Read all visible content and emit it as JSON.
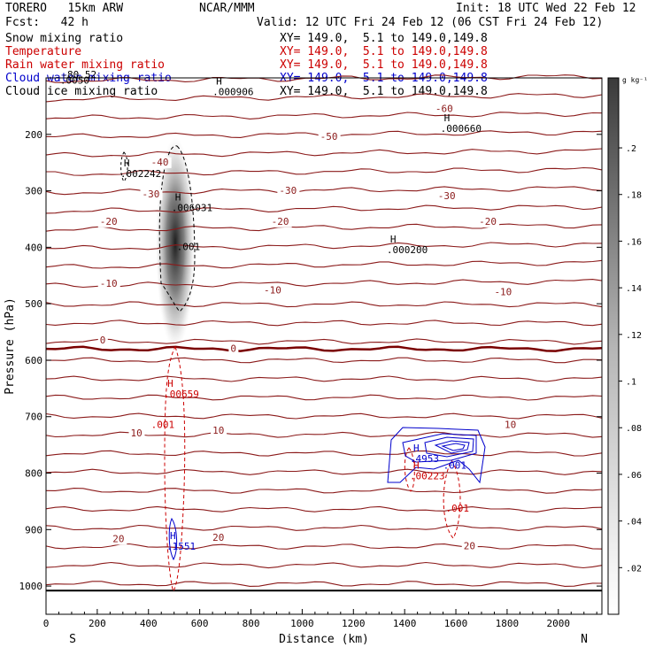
{
  "header": {
    "model": "TORERO   15km ARW",
    "center": "NCAR/MMM",
    "init": "Init: 18 UTC Wed 22 Feb 12",
    "fcst": "Fcst:   42 h",
    "valid": "Valid: 12 UTC Fri 24 Feb 12 (06 CST Fri 24 Feb 12)"
  },
  "legend": [
    {
      "name": "Snow mixing ratio",
      "xy": "XY= 149.0,  5.1 to 149.0,149.8",
      "color": "#000000"
    },
    {
      "name": "Temperature",
      "xy": "XY= 149.0,  5.1 to 149.0,149.8",
      "color": "#cc0000"
    },
    {
      "name": "Rain water mixing ratio",
      "xy": "XY= 149.0,  5.1 to 149.0,149.8",
      "color": "#cc0000"
    },
    {
      "name": "Cloud water mixing ratio",
      "xy": "XY= 149.0,  5.1 to 149.0,149.8",
      "color": "#0000cc"
    },
    {
      "name": "Cloud ice mixing ratio",
      "xy": "XY= 149.0,  5.1 to 149.0,149.8",
      "color": "#000000"
    }
  ],
  "chart_data": {
    "type": "contour cross-section",
    "xlabel": "Distance (km)",
    "ylabel": "Pressure (hPa)",
    "x_ticks": [
      "0",
      "200",
      "400",
      "600",
      "800",
      "1000",
      "1200",
      "1400",
      "1600",
      "1800",
      "2000"
    ],
    "y_ticks": [
      "200",
      "300",
      "400",
      "500",
      "600",
      "700",
      "800",
      "900",
      "1000"
    ],
    "xlim": [
      0,
      2170
    ],
    "ylim_hpa": [
      100,
      1050
    ],
    "y_axis": "pressure, decreasing upward",
    "ends": {
      "left": "S",
      "right": "N"
    },
    "colorbar": {
      "unit": "g kg⁻¹",
      "ticks": [
        ".02",
        ".04",
        ".06",
        ".08",
        ".1",
        ".12",
        ".14",
        ".16",
        ".18",
        ".2"
      ],
      "range": [
        0,
        0.23
      ]
    },
    "temperature_labels": [
      {
        "text": "-60",
        "x": 1520,
        "p": 160
      },
      {
        "text": "-50",
        "x": 1070,
        "p": 210
      },
      {
        "text": "-40",
        "x": 410,
        "p": 255
      },
      {
        "text": "-30",
        "x": 375,
        "p": 312
      },
      {
        "text": "-30",
        "x": 910,
        "p": 305
      },
      {
        "text": "-30",
        "x": 1530,
        "p": 315
      },
      {
        "text": "-20",
        "x": 210,
        "p": 360
      },
      {
        "text": "-20",
        "x": 880,
        "p": 360
      },
      {
        "text": "-20",
        "x": 1690,
        "p": 360
      },
      {
        "text": "-10",
        "x": 210,
        "p": 470
      },
      {
        "text": "-10",
        "x": 850,
        "p": 482
      },
      {
        "text": "-10",
        "x": 1750,
        "p": 485
      },
      {
        "text": "0",
        "x": 210,
        "p": 570
      },
      {
        "text": "0",
        "x": 720,
        "p": 585
      },
      {
        "text": "10",
        "x": 330,
        "p": 735
      },
      {
        "text": "10",
        "x": 650,
        "p": 730
      },
      {
        "text": "10",
        "x": 1790,
        "p": 720
      },
      {
        "text": "20",
        "x": 260,
        "p": 922
      },
      {
        "text": "20",
        "x": 650,
        "p": 920
      },
      {
        "text": "20",
        "x": 1630,
        "p": 935
      }
    ],
    "highs": [
      {
        "label": "H",
        "value": ".000906",
        "x": 650,
        "p": 115,
        "color": "#000000"
      },
      {
        "label": "H",
        "value": ".000660",
        "x": 1540,
        "p": 180,
        "color": "#000000"
      },
      {
        "label": "H",
        "value": ".002242",
        "x": 290,
        "p": 260,
        "color": "#000000"
      },
      {
        "label": "H",
        "value": ".006031",
        "x": 490,
        "p": 320,
        "color": "#000000"
      },
      {
        "label": "H",
        "value": ".000200",
        "x": 1330,
        "p": 395,
        "color": "#000000"
      },
      {
        "label": "H",
        "value": ".00659",
        "x": 460,
        "p": 650,
        "color": "#cc0000"
      },
      {
        "label": "H",
        "value": ".00223",
        "x": 1420,
        "p": 795,
        "color": "#cc0000"
      },
      {
        "label": "H",
        "value": ".4953",
        "x": 1420,
        "p": 765,
        "color": "#0000cc"
      },
      {
        "label": "H",
        "value": ".1551",
        "x": 470,
        "p": 920,
        "color": "#0000cc"
      }
    ],
    "other_labels": [
      {
        "text": ".001",
        "x": 510,
        "p": 405,
        "color": "#000000"
      },
      {
        "text": ".001",
        "x": 410,
        "p": 720,
        "color": "#cc0000"
      },
      {
        "text": ".001",
        "x": 1560,
        "p": 868,
        "color": "#cc0000"
      },
      {
        "text": ".001",
        "x": 1550,
        "p": 792,
        "color": "#0000cc"
      },
      {
        "text": "-80.52",
        "x": 60,
        "p": 100,
        "color": "#000000"
      },
      {
        "text": ".0050",
        "x": 55,
        "p": 110,
        "color": "#000000"
      }
    ]
  }
}
